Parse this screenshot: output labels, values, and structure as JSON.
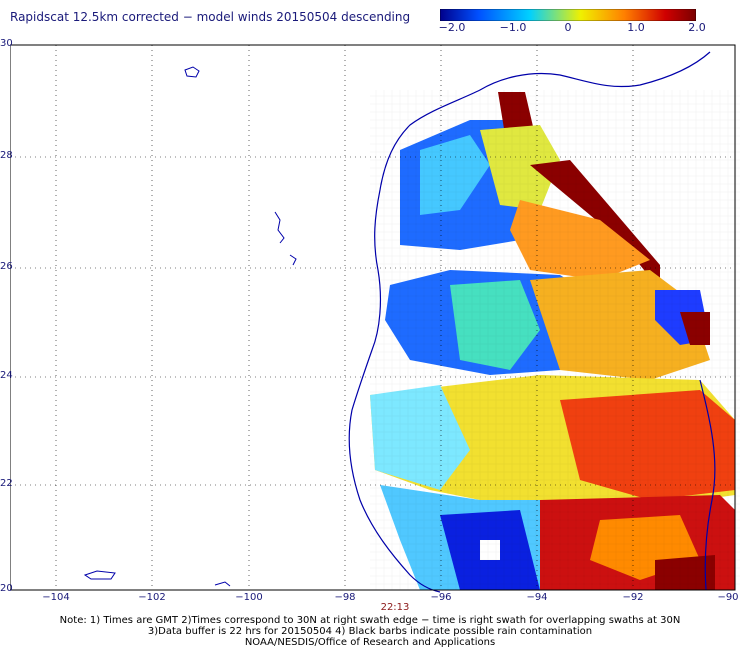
{
  "title": "Rapidscat 12.5km corrected − model winds 20150504 descending",
  "colorbar": {
    "labels": [
      "−2.0",
      "−1.0",
      "0",
      "1.0",
      "2.0"
    ],
    "colors": [
      "#00008b",
      "#0050ff",
      "#00d0ff",
      "#f0f000",
      "#ff8000",
      "#d00000",
      "#7a0000"
    ]
  },
  "axes": {
    "lon_ticks": [
      "−104",
      "−102",
      "−100",
      "−98",
      "−96",
      "−94",
      "−92",
      "−90"
    ],
    "lat_ticks": [
      "30",
      "28",
      "26",
      "24",
      "22",
      "20"
    ]
  },
  "swath_time": "22:13",
  "notes": [
    "Note: 1) Times are GMT 2)Times correspond to 30N at right swath edge − time is right swath for overlapping swaths at 30N",
    "3)Data buffer is 22 hrs for 20150504 4) Black barbs indicate possible rain contamination",
    "NOAA/NESDIS/Office of Research and Applications"
  ]
}
